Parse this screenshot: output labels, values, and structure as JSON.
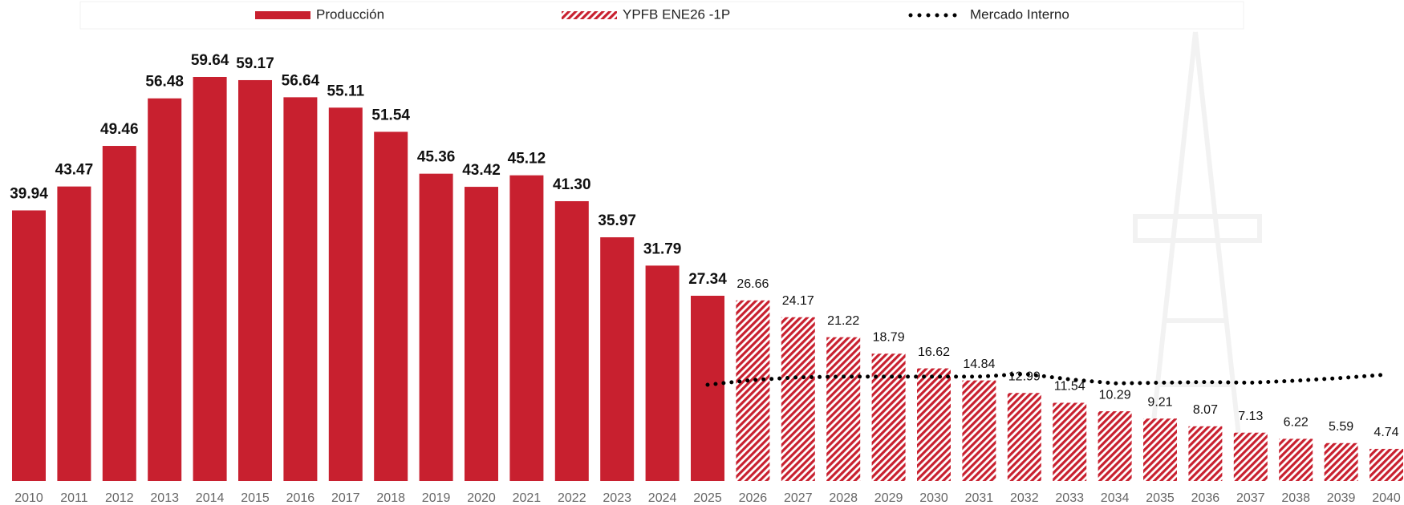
{
  "chart_data": {
    "type": "bar",
    "categories": [
      "2010",
      "2011",
      "2012",
      "2013",
      "2014",
      "2015",
      "2016",
      "2017",
      "2018",
      "2019",
      "2020",
      "2021",
      "2022",
      "2023",
      "2024",
      "2025",
      "2026",
      "2027",
      "2028",
      "2029",
      "2030",
      "2031",
      "2032",
      "2033",
      "2034",
      "2035",
      "2036",
      "2037",
      "2038",
      "2039",
      "2040"
    ],
    "series": [
      {
        "name": "Producción",
        "color": "#c8202f",
        "type": "bar",
        "hatch": false,
        "values": [
          39.94,
          43.47,
          49.46,
          56.48,
          59.64,
          59.17,
          56.64,
          55.11,
          51.54,
          45.36,
          43.42,
          45.12,
          41.3,
          35.97,
          31.79,
          27.34,
          null,
          null,
          null,
          null,
          null,
          null,
          null,
          null,
          null,
          null,
          null,
          null,
          null,
          null,
          null
        ],
        "value_labels": [
          null,
          null,
          null,
          null,
          null,
          null,
          null,
          null,
          null,
          null,
          null,
          null,
          "41.30",
          null,
          null,
          null,
          null,
          null,
          null,
          null,
          null,
          null,
          null,
          null,
          null,
          null,
          null,
          null,
          null,
          null,
          null
        ]
      },
      {
        "name": "YPFB ENE26 -1P",
        "color": "#c8202f",
        "type": "bar",
        "hatch": true,
        "values": [
          null,
          null,
          null,
          null,
          null,
          null,
          null,
          null,
          null,
          null,
          null,
          null,
          null,
          null,
          null,
          null,
          26.66,
          24.17,
          21.22,
          18.79,
          16.62,
          14.84,
          12.99,
          11.54,
          10.29,
          9.21,
          8.07,
          7.13,
          6.22,
          5.59,
          4.74
        ]
      },
      {
        "name": "Mercado Interno",
        "color": "#000000",
        "type": "line",
        "style": "dotted",
        "values": [
          null,
          null,
          null,
          null,
          null,
          null,
          null,
          null,
          null,
          null,
          null,
          null,
          null,
          null,
          null,
          14.2,
          14.9,
          15.3,
          15.4,
          15.4,
          15.4,
          15.4,
          15.8,
          15.0,
          14.4,
          14.5,
          14.6,
          14.5,
          14.8,
          15.2,
          15.7
        ]
      }
    ]
  }
}
